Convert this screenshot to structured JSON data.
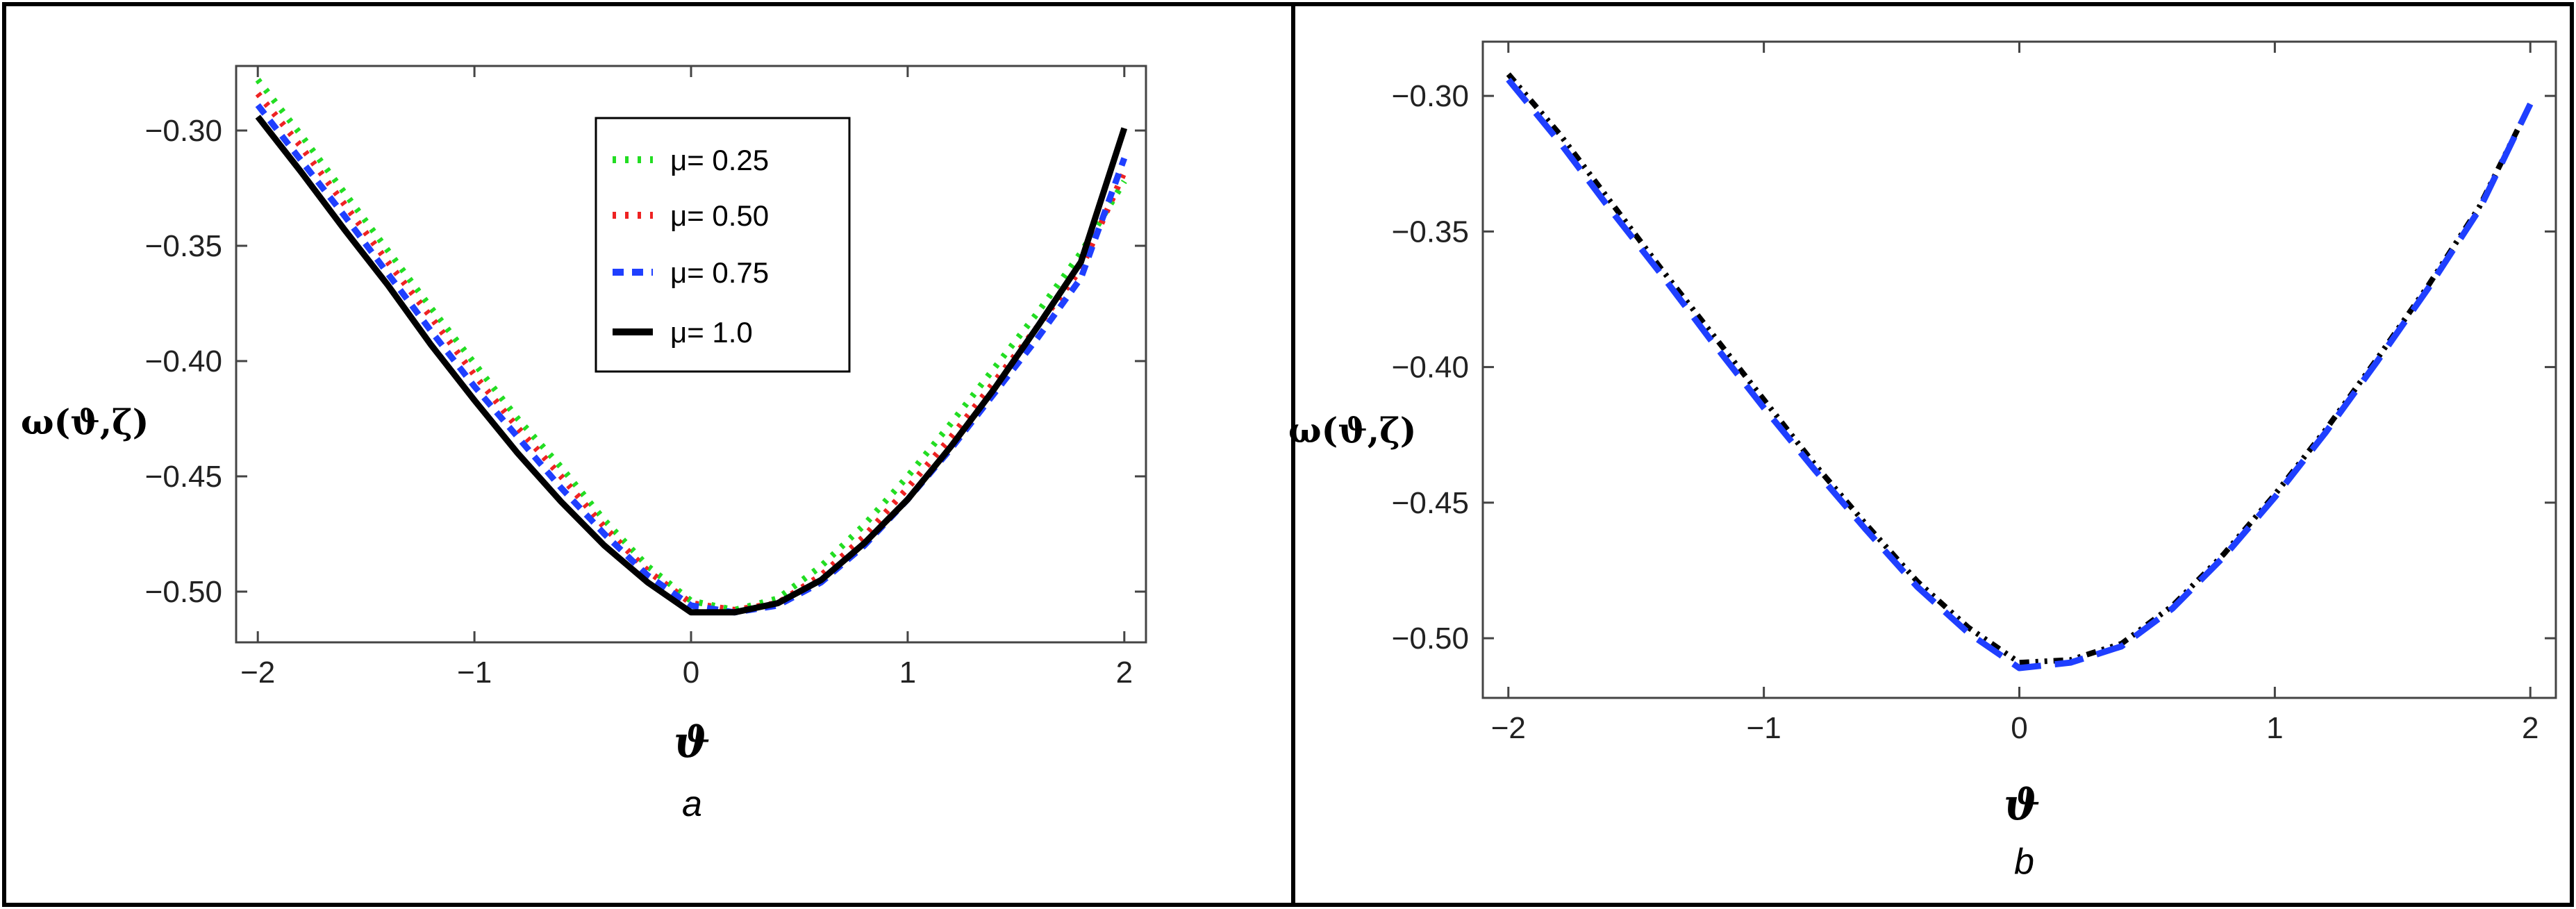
{
  "chart_data": [
    {
      "type": "line",
      "panel_label": "a",
      "xlabel": "ϑ",
      "ylabel": "ω(ϑ,ζ)",
      "xlim": [
        -2.1,
        2.1
      ],
      "ylim": [
        -0.522,
        -0.272
      ],
      "x_ticks": [
        "−2",
        "−1",
        "0",
        "1",
        "2"
      ],
      "y_ticks": [
        "−0.30",
        "−0.35",
        "−0.40",
        "−0.45",
        "−0.50"
      ],
      "legend_position": "top-right",
      "x": [
        -2,
        -1.8,
        -1.6,
        -1.4,
        -1.2,
        -1,
        -0.8,
        -0.6,
        -0.4,
        -0.2,
        0,
        0.2,
        0.4,
        0.6,
        0.8,
        1,
        1.2,
        1.4,
        1.6,
        1.8,
        2
      ],
      "series": [
        {
          "name": "μ= 0.25",
          "color": "#22dd22",
          "style": "dotted",
          "values": [
            -0.278,
            -0.302,
            -0.327,
            -0.352,
            -0.377,
            -0.401,
            -0.425,
            -0.446,
            -0.469,
            -0.489,
            -0.504,
            -0.508,
            -0.503,
            -0.489,
            -0.471,
            -0.45,
            -0.427,
            -0.403,
            -0.379,
            -0.353,
            -0.322
          ]
        },
        {
          "name": "μ= 0.50",
          "color": "#ee2222",
          "style": "dotted",
          "values": [
            -0.284,
            -0.307,
            -0.332,
            -0.357,
            -0.381,
            -0.406,
            -0.429,
            -0.45,
            -0.472,
            -0.491,
            -0.505,
            -0.508,
            -0.505,
            -0.493,
            -0.476,
            -0.455,
            -0.433,
            -0.409,
            -0.385,
            -0.36,
            -0.318
          ]
        },
        {
          "name": "μ= 0.75",
          "color": "#1f3fff",
          "style": "dashed",
          "values": [
            -0.289,
            -0.313,
            -0.337,
            -0.362,
            -0.387,
            -0.411,
            -0.433,
            -0.455,
            -0.475,
            -0.493,
            -0.506,
            -0.509,
            -0.506,
            -0.496,
            -0.48,
            -0.46,
            -0.438,
            -0.414,
            -0.39,
            -0.364,
            -0.312
          ]
        },
        {
          "name": "μ= 1.0",
          "color": "#000000",
          "style": "solid",
          "values": [
            -0.294,
            -0.318,
            -0.343,
            -0.367,
            -0.393,
            -0.417,
            -0.44,
            -0.461,
            -0.48,
            -0.496,
            -0.509,
            -0.509,
            -0.505,
            -0.495,
            -0.479,
            -0.46,
            -0.437,
            -0.412,
            -0.385,
            -0.357,
            -0.299
          ]
        }
      ]
    },
    {
      "type": "line",
      "panel_label": "b",
      "xlabel": "ϑ",
      "ylabel": "ω(ϑ,ζ)",
      "xlim": [
        -2.1,
        2.1
      ],
      "ylim": [
        -0.522,
        -0.28
      ],
      "x_ticks": [
        "−2",
        "−1",
        "0",
        "1",
        "2"
      ],
      "y_ticks": [
        "−0.30",
        "−0.35",
        "−0.40",
        "−0.45",
        "−0.50"
      ],
      "x": [
        -2,
        -1.8,
        -1.6,
        -1.4,
        -1.2,
        -1,
        -0.8,
        -0.6,
        -0.4,
        -0.2,
        0,
        0.2,
        0.4,
        0.6,
        0.8,
        1,
        1.2,
        1.4,
        1.6,
        1.8,
        2
      ],
      "series": [
        {
          "color": "#000000",
          "style": "dash-dot-dot",
          "values": [
            -0.292,
            -0.314,
            -0.339,
            -0.364,
            -0.388,
            -0.412,
            -0.436,
            -0.458,
            -0.479,
            -0.496,
            -0.509,
            -0.508,
            -0.502,
            -0.488,
            -0.469,
            -0.447,
            -0.423,
            -0.397,
            -0.37,
            -0.341,
            -0.303
          ]
        },
        {
          "color": "#1f3fff",
          "style": "long-dash",
          "values": [
            -0.294,
            -0.317,
            -0.342,
            -0.366,
            -0.391,
            -0.415,
            -0.438,
            -0.46,
            -0.481,
            -0.498,
            -0.511,
            -0.509,
            -0.503,
            -0.489,
            -0.47,
            -0.448,
            -0.424,
            -0.398,
            -0.371,
            -0.342,
            -0.303
          ]
        }
      ]
    }
  ]
}
